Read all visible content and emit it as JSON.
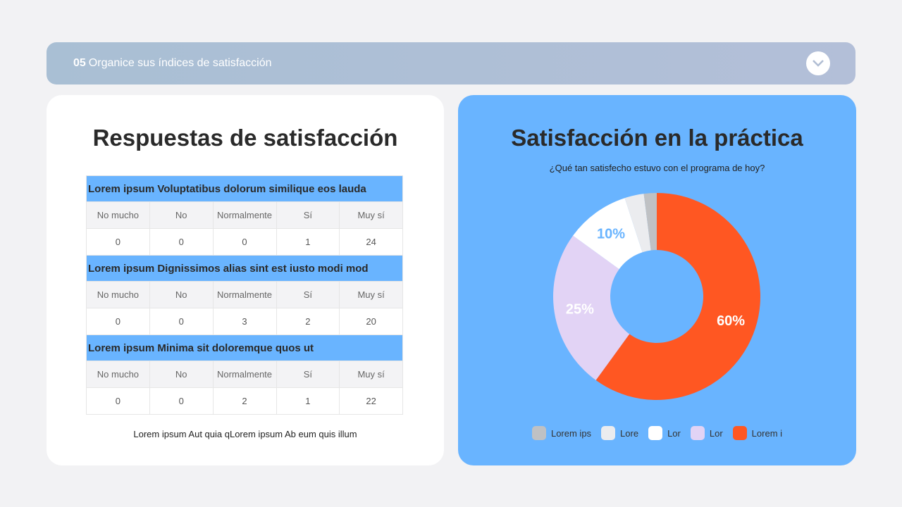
{
  "header": {
    "number": "05",
    "title": "Organice sus índices de satisfacción"
  },
  "left": {
    "title": "Respuestas de satisfacción",
    "columns": [
      "No mucho",
      "No",
      "Normalmente",
      "Sí",
      "Muy sí"
    ],
    "sections": [
      {
        "title": "Lorem ipsum Voluptatibus dolorum similique eos lauda",
        "values": [
          "0",
          "0",
          "0",
          "1",
          "24"
        ]
      },
      {
        "title": "Lorem ipsum Dignissimos alias sint est iusto modi mod",
        "values": [
          "0",
          "0",
          "3",
          "2",
          "20"
        ]
      },
      {
        "title": "Lorem ipsum Minima sit doloremque quos ut",
        "values": [
          "0",
          "0",
          "2",
          "1",
          "22"
        ]
      }
    ],
    "footer": "Lorem ipsum Aut quia qLorem ipsum Ab eum quis illum"
  },
  "right": {
    "title": "Satisfacción en la práctica",
    "subtitle": "¿Qué tan satisfecho estuvo con el programa de hoy?"
  },
  "chart_data": {
    "type": "pie",
    "donut": true,
    "categories": [
      "Lorem ips",
      "Lore",
      "Lor",
      "Lor",
      "Lorem i"
    ],
    "values": [
      2,
      3,
      10,
      25,
      60
    ],
    "data_labels": [
      "",
      "",
      "10%",
      "25%",
      "60%"
    ],
    "colors": [
      "#bfc1c4",
      "#ebecef",
      "#ffffff",
      "#e2d3f5",
      "#ff5722"
    ],
    "label_colors": [
      "",
      "",
      "#69b4ff",
      "#ffffff",
      "#ffffff"
    ],
    "legend": "bottom"
  }
}
